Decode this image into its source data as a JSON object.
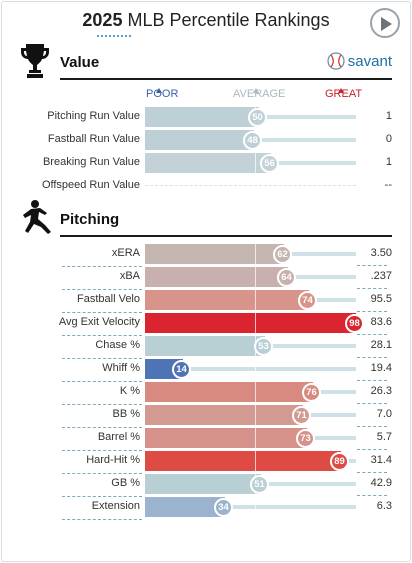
{
  "header": {
    "year": "2025",
    "title": "MLB Percentile Rankings"
  },
  "brand": {
    "name": "savant"
  },
  "scale": {
    "poor": "POOR",
    "average": "AVERAGE",
    "great": "GREAT"
  },
  "value_section": {
    "title": "Value",
    "rows": [
      {
        "label": "Pitching Run Value",
        "percentile": 50,
        "value": "1",
        "color": "#bcd0d5"
      },
      {
        "label": "Fastball Run Value",
        "percentile": 48,
        "value": "0",
        "color": "#bcd0d5"
      },
      {
        "label": "Breaking Run Value",
        "percentile": 56,
        "value": "1",
        "color": "#c2d2d6"
      },
      {
        "label": "Offspeed Run Value",
        "percentile": null,
        "value": "--",
        "color": "#e6ecee"
      }
    ]
  },
  "pitching_section": {
    "title": "Pitching",
    "rows": [
      {
        "label": "xERA",
        "percentile": 62,
        "value": "3.50",
        "color": "#c4b5b1"
      },
      {
        "label": "xBA",
        "percentile": 64,
        "value": ".237",
        "color": "#c8b0ae"
      },
      {
        "label": "Fastball Velo",
        "percentile": 74,
        "value": "95.5",
        "color": "#d8938a"
      },
      {
        "label": "Avg Exit Velocity",
        "percentile": 98,
        "value": "83.6",
        "color": "#da2530"
      },
      {
        "label": "Chase %",
        "percentile": 53,
        "value": "28.1",
        "color": "#b8cfd4"
      },
      {
        "label": "Whiff %",
        "percentile": 14,
        "value": "19.4",
        "color": "#4f74b6"
      },
      {
        "label": "K %",
        "percentile": 76,
        "value": "26.3",
        "color": "#d88a80"
      },
      {
        "label": "BB %",
        "percentile": 71,
        "value": "7.0",
        "color": "#d39a92"
      },
      {
        "label": "Barrel %",
        "percentile": 73,
        "value": "5.7",
        "color": "#d6928a"
      },
      {
        "label": "Hard-Hit %",
        "percentile": 89,
        "value": "31.4",
        "color": "#de4b45"
      },
      {
        "label": "GB %",
        "percentile": 51,
        "value": "42.9",
        "color": "#b8cfd4"
      },
      {
        "label": "Extension",
        "percentile": 34,
        "value": "6.3",
        "color": "#9bb3cd"
      }
    ]
  }
}
